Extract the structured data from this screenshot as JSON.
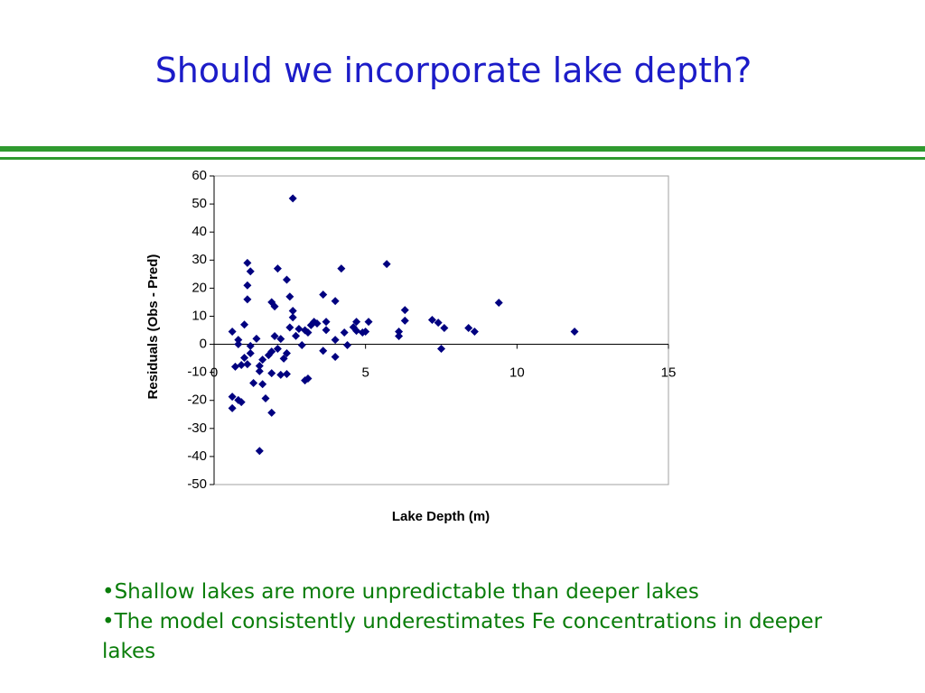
{
  "header": {
    "title": "Should we incorporate lake depth?"
  },
  "chart_data": {
    "type": "scatter",
    "x_label": "Lake Depth (m)",
    "y_label": "Residuals (Obs - Pred)",
    "x": [
      2.6,
      1.1,
      1.2,
      1.1,
      1.1,
      2.1,
      2.4,
      2.5,
      1.9,
      2.0,
      4.2,
      5.7,
      3.6,
      4.0,
      6.3,
      6.3,
      9.4,
      11.9,
      2.6,
      2.6,
      1.0,
      0.6,
      0.8,
      0.8,
      1.4,
      2.5,
      2.8,
      2.7,
      3.0,
      3.2,
      3.3,
      3.4,
      3.1,
      3.7,
      3.7,
      4.0,
      4.3,
      4.6,
      4.7,
      4.7,
      4.9,
      5.1,
      5.0,
      6.1,
      6.1,
      7.2,
      7.4,
      7.6,
      7.5,
      8.4,
      8.6,
      4.4,
      3.6,
      4.0,
      2.9,
      2.2,
      2.0,
      2.1,
      1.9,
      1.8,
      2.4,
      2.3,
      1.2,
      1.2,
      1.0,
      1.1,
      0.9,
      0.7,
      1.6,
      1.5,
      1.5,
      1.9,
      2.2,
      2.4,
      1.3,
      1.6,
      3.1,
      3.0,
      0.6,
      0.8,
      0.9,
      1.7,
      0.6,
      1.9,
      1.5
    ],
    "values": [
      52,
      29,
      26,
      21,
      16,
      27,
      23,
      17,
      15,
      13.5,
      27,
      28.6,
      17.7,
      15.4,
      12.2,
      8.4,
      14.8,
      4.5,
      11.9,
      9.6,
      7,
      4.5,
      1.6,
      0,
      2,
      6,
      5.5,
      3,
      5,
      6.8,
      8,
      7.4,
      4.2,
      8,
      5.1,
      1.6,
      4.2,
      6.1,
      8,
      4.8,
      4.2,
      8,
      4.5,
      4.5,
      2.9,
      8.7,
      7.7,
      5.8,
      -1.6,
      5.8,
      4.5,
      -0.3,
      -2.3,
      -4.5,
      -0.3,
      1.9,
      2.9,
      -1.6,
      -2.6,
      -3.9,
      -3.2,
      -5.1,
      -0.6,
      -3.2,
      -4.8,
      -7.1,
      -7.4,
      -8,
      -5.5,
      -7.7,
      -9.6,
      -10.3,
      -10.9,
      -10.6,
      -13.8,
      -14.2,
      -12.2,
      -12.9,
      -18.7,
      -19.9,
      -20.6,
      -19.3,
      -22.8,
      -24.4,
      -38
    ],
    "color": "#000080",
    "xlim": [
      0,
      15
    ],
    "ylim": [
      -50,
      60
    ],
    "xticks": [
      0,
      5,
      10,
      15
    ],
    "yticks": [
      -50,
      -40,
      -30,
      -20,
      -10,
      0,
      10,
      20,
      30,
      40,
      50,
      60
    ]
  },
  "bullets": [
    "•Shallow lakes are more unpredictable than deeper lakes",
    "•The model consistently underestimates Fe concentrations in deeper lakes"
  ]
}
